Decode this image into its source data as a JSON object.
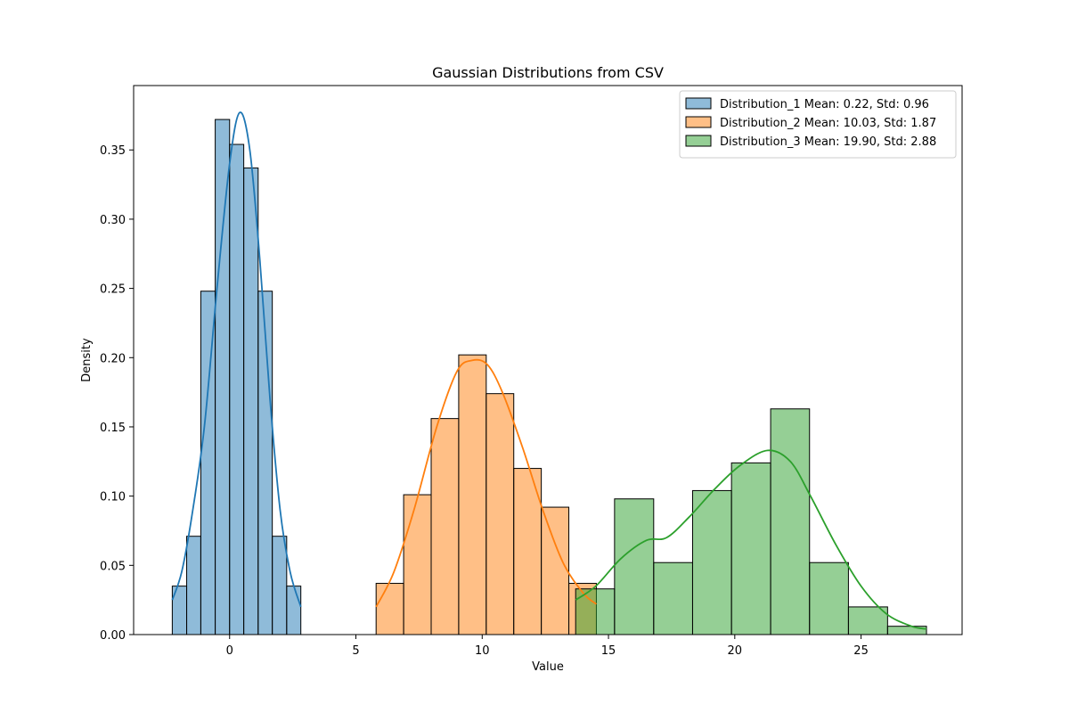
{
  "chart_data": {
    "type": "bar",
    "title": "Gaussian Distributions from CSV",
    "xlabel": "Value",
    "ylabel": "Density",
    "xlim": [
      -3.8,
      29.0
    ],
    "ylim": [
      0,
      0.3965
    ],
    "xticks": [
      0,
      5,
      10,
      15,
      20,
      25
    ],
    "yticks": [
      0.0,
      0.05,
      0.1,
      0.15,
      0.2,
      0.25,
      0.3,
      0.35
    ],
    "grid": false,
    "legend_position": "top-right",
    "series": [
      {
        "name": "Distribution_1 Mean: 0.22, Std: 0.96",
        "color": "#1f77b4",
        "bin_edges": [
          -2.27,
          -1.7,
          -1.14,
          -0.57,
          0.0,
          0.56,
          1.13,
          1.69,
          2.26,
          2.82
        ],
        "values": [
          0.035,
          0.071,
          0.248,
          0.372,
          0.354,
          0.337,
          0.248,
          0.071,
          0.035
        ],
        "kde": [
          [
            -2.27,
            0.025
          ],
          [
            -1.9,
            0.045
          ],
          [
            -1.5,
            0.085
          ],
          [
            -1.0,
            0.15
          ],
          [
            -0.5,
            0.25
          ],
          [
            0.0,
            0.34
          ],
          [
            0.4,
            0.377
          ],
          [
            0.8,
            0.35
          ],
          [
            1.2,
            0.27
          ],
          [
            1.6,
            0.17
          ],
          [
            2.0,
            0.09
          ],
          [
            2.4,
            0.045
          ],
          [
            2.82,
            0.02
          ]
        ]
      },
      {
        "name": "Distribution_2 Mean: 10.03, Std: 1.87",
        "color": "#ff7f0e",
        "bin_edges": [
          5.8,
          6.89,
          7.98,
          9.07,
          10.16,
          11.25,
          12.34,
          13.43,
          14.52
        ],
        "values": [
          0.037,
          0.101,
          0.156,
          0.202,
          0.174,
          0.12,
          0.092,
          0.037
        ],
        "kde": [
          [
            5.8,
            0.02
          ],
          [
            6.5,
            0.045
          ],
          [
            7.3,
            0.09
          ],
          [
            8.2,
            0.15
          ],
          [
            9.0,
            0.19
          ],
          [
            9.6,
            0.198
          ],
          [
            10.2,
            0.195
          ],
          [
            10.8,
            0.175
          ],
          [
            11.6,
            0.135
          ],
          [
            12.4,
            0.09
          ],
          [
            13.2,
            0.052
          ],
          [
            14.0,
            0.03
          ],
          [
            14.52,
            0.022
          ]
        ]
      },
      {
        "name": "Distribution_3 Mean: 19.90, Std: 2.88",
        "color": "#2ca02c",
        "bin_edges": [
          13.7,
          15.24,
          16.79,
          18.33,
          19.87,
          21.42,
          22.96,
          24.5,
          26.05,
          27.59
        ],
        "values": [
          0.033,
          0.098,
          0.052,
          0.104,
          0.124,
          0.163,
          0.052,
          0.02,
          0.006
        ],
        "kde": [
          [
            13.7,
            0.025
          ],
          [
            14.5,
            0.035
          ],
          [
            15.5,
            0.055
          ],
          [
            16.5,
            0.068
          ],
          [
            17.3,
            0.07
          ],
          [
            18.2,
            0.085
          ],
          [
            19.2,
            0.105
          ],
          [
            20.2,
            0.122
          ],
          [
            21.3,
            0.133
          ],
          [
            22.2,
            0.125
          ],
          [
            23.0,
            0.1
          ],
          [
            24.0,
            0.065
          ],
          [
            25.0,
            0.035
          ],
          [
            26.0,
            0.015
          ],
          [
            27.0,
            0.006
          ],
          [
            27.59,
            0.004
          ]
        ]
      }
    ]
  }
}
